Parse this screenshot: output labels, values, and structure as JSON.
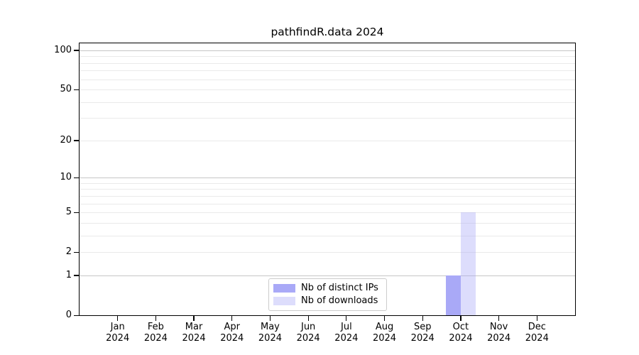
{
  "chart_data": {
    "type": "bar",
    "title": "pathfindR.data 2024",
    "year_label": "2024",
    "categories": [
      "Jan",
      "Feb",
      "Mar",
      "Apr",
      "May",
      "Jun",
      "Jul",
      "Aug",
      "Sep",
      "Oct",
      "Nov",
      "Dec"
    ],
    "series": [
      {
        "name": "Nb of distinct IPs",
        "color": "#a9a9f7",
        "values": [
          0,
          0,
          0,
          0,
          0,
          0,
          0,
          0,
          0,
          1,
          0,
          0
        ]
      },
      {
        "name": "Nb of downloads",
        "color": "rgba(169,169,247,0.40)",
        "values": [
          0,
          0,
          0,
          0,
          0,
          0,
          0,
          0,
          0,
          5,
          0,
          0
        ]
      }
    ],
    "xlabel": "",
    "ylabel": "",
    "y_axis": {
      "scale": "log1p",
      "ticks": [
        0,
        1,
        2,
        5,
        10,
        20,
        50,
        100
      ],
      "max": 113.3,
      "minor_gridlines": [
        2,
        3,
        4,
        5,
        6,
        7,
        8,
        9,
        20,
        30,
        40,
        50,
        60,
        70,
        80,
        90
      ],
      "major_gridlines": [
        1,
        10,
        100
      ],
      "minor_grid_color": "#eaeaea",
      "major_grid_color": "#c6c6c6"
    },
    "grid": true,
    "legend_position": "lower center",
    "axis_color": "#000000",
    "background_color": "#ffffff"
  }
}
